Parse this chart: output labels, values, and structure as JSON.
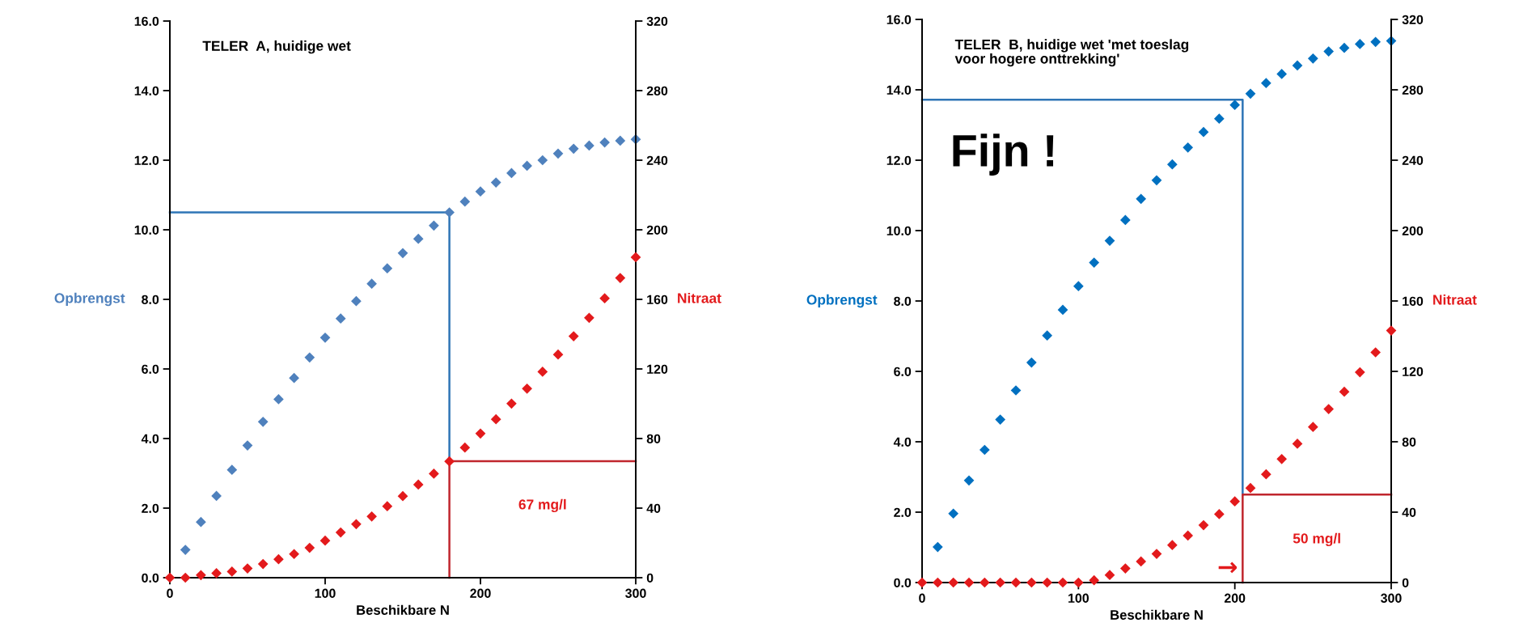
{
  "chart_data": [
    {
      "type": "scatter",
      "title": "TELER  A, huidige wet",
      "xlabel": "Beschikbare N",
      "ylabel": "Opbrengst",
      "y2label": "Nitraat",
      "marker": "diamond",
      "xlim": [
        0,
        300
      ],
      "xticks": [
        0,
        100,
        200,
        300
      ],
      "ylim": [
        0,
        16
      ],
      "yticks": [
        {
          "value": 0,
          "label": "0.0"
        },
        {
          "value": 2,
          "label": "2.0"
        },
        {
          "value": 4,
          "label": "4.0"
        },
        {
          "value": 6,
          "label": "6.0"
        },
        {
          "value": 8,
          "label": "8.0"
        },
        {
          "value": 10,
          "label": "10.0"
        },
        {
          "value": 12,
          "label": "12.0"
        },
        {
          "value": 14,
          "label": "14.0"
        },
        {
          "value": 16,
          "label": "16.0"
        }
      ],
      "y2lim": [
        0,
        320
      ],
      "y2ticks": [
        0,
        40,
        80,
        120,
        160,
        200,
        240,
        280,
        320
      ],
      "x": [
        10,
        20,
        30,
        40,
        50,
        60,
        70,
        80,
        90,
        100,
        110,
        120,
        130,
        140,
        150,
        160,
        170,
        180,
        190,
        200,
        210,
        220,
        230,
        240,
        250,
        260,
        270,
        280,
        290,
        300
      ],
      "series": [
        {
          "type": "line",
          "marker": "none",
          "color": "#2e75b6",
          "x": [
            0,
            180,
            180
          ],
          "values": [
            10.5,
            10.5,
            3.35
          ]
        },
        {
          "type": "line",
          "marker": "none",
          "axis": "y2",
          "color": "#c0262d",
          "x": [
            300,
            180,
            180
          ],
          "values": [
            67,
            67,
            0
          ]
        },
        {
          "color": "#4f81bd",
          "values": [
            0.8,
            1.6,
            2.35,
            3.1,
            3.8,
            4.48,
            5.13,
            5.74,
            6.33,
            6.9,
            7.45,
            7.95,
            8.45,
            8.89,
            9.33,
            9.74,
            10.12,
            10.5,
            10.81,
            11.1,
            11.36,
            11.63,
            11.84,
            12.0,
            12.19,
            12.33,
            12.42,
            12.51,
            12.56,
            12.6
          ]
        },
        {
          "color": "#e31a1c",
          "axis": "y2",
          "x": [
            0,
            10,
            20,
            30,
            40,
            50,
            60,
            70,
            80,
            90,
            100,
            110,
            120,
            130,
            140,
            150,
            160,
            170,
            180,
            190,
            200,
            210,
            220,
            230,
            240,
            250,
            260,
            270,
            280,
            290,
            300
          ],
          "values": [
            0,
            0,
            1.5,
            2.6,
            3.5,
            5.3,
            7.9,
            10.6,
            13.6,
            17.2,
            21.3,
            26.0,
            30.8,
            35.2,
            41.1,
            46.9,
            53.5,
            59.8,
            66.9,
            74.8,
            82.9,
            91.1,
            100.1,
            108.7,
            118.4,
            128.3,
            138.8,
            149.4,
            160.6,
            172.3,
            184.2
          ]
        }
      ],
      "annotations": [
        "67 mg/l"
      ]
    },
    {
      "type": "scatter",
      "title": "TELER  B, huidige wet 'met toeslag\nvoor hogere onttrekking'",
      "xlabel": "Beschikbare N",
      "ylabel": "Opbrengst",
      "y2label": "Nitraat",
      "marker": "diamond",
      "xlim": [
        0,
        300
      ],
      "xticks": [
        0,
        100,
        200,
        300
      ],
      "ylim": [
        0,
        16
      ],
      "yticks": [
        {
          "value": 0,
          "label": "0.0"
        },
        {
          "value": 2,
          "label": "2.0"
        },
        {
          "value": 4,
          "label": "4.0"
        },
        {
          "value": 6,
          "label": "6.0"
        },
        {
          "value": 8,
          "label": "8.0"
        },
        {
          "value": 10,
          "label": "10.0"
        },
        {
          "value": 12,
          "label": "12.0"
        },
        {
          "value": 14,
          "label": "14.0"
        },
        {
          "value": 16,
          "label": "16.0"
        }
      ],
      "y2lim": [
        0,
        320
      ],
      "y2ticks": [
        0,
        40,
        80,
        120,
        160,
        200,
        240,
        280,
        320
      ],
      "x": [
        10,
        20,
        30,
        40,
        50,
        60,
        70,
        80,
        90,
        100,
        110,
        120,
        130,
        140,
        150,
        160,
        170,
        180,
        190,
        200,
        210,
        220,
        230,
        240,
        250,
        260,
        270,
        280,
        290,
        300
      ],
      "series": [
        {
          "type": "line",
          "marker": "none",
          "color": "#2e75b6",
          "x": [
            0,
            205,
            205
          ],
          "values": [
            13.72,
            13.72,
            2.5
          ]
        },
        {
          "type": "line",
          "marker": "none",
          "axis": "y2",
          "color": "#c0262d",
          "x": [
            300,
            205,
            205
          ],
          "values": [
            50,
            50,
            0
          ]
        },
        {
          "color": "#0070c0",
          "values": [
            1.01,
            1.96,
            2.9,
            3.77,
            4.63,
            5.46,
            6.25,
            7.02,
            7.75,
            8.42,
            9.09,
            9.71,
            10.3,
            10.9,
            11.43,
            11.88,
            12.36,
            12.8,
            13.18,
            13.57,
            13.89,
            14.19,
            14.45,
            14.69,
            14.89,
            15.09,
            15.19,
            15.3,
            15.36,
            15.39
          ]
        },
        {
          "color": "#e31a1c",
          "axis": "y2",
          "x": [
            0,
            10,
            20,
            30,
            40,
            50,
            60,
            70,
            80,
            90,
            100,
            110,
            120,
            130,
            140,
            150,
            160,
            170,
            180,
            190,
            200,
            210,
            220,
            230,
            240,
            250,
            260,
            270,
            280,
            290,
            300
          ],
          "values": [
            0,
            0,
            0,
            0,
            0,
            0,
            0,
            0,
            0,
            0,
            0,
            1.3,
            4.3,
            8.0,
            12.0,
            16.3,
            21.3,
            26.7,
            32.6,
            38.9,
            46.1,
            53.7,
            61.5,
            70.2,
            78.9,
            88.4,
            98.6,
            108.4,
            119.5,
            130.8,
            143.2
          ]
        }
      ],
      "annotations": [
        "50 mg/l",
        "→",
        "Fijn !"
      ]
    }
  ]
}
